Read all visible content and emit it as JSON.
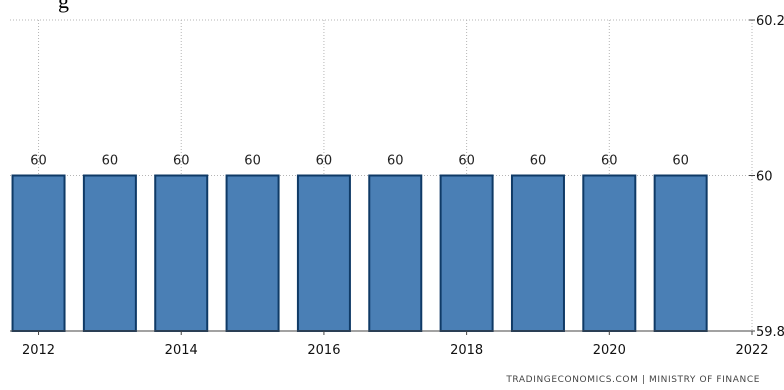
{
  "header": {
    "partial_title": "g"
  },
  "source_note": "TRADINGECONOMICS.COM | MINISTRY OF FINANCE",
  "colors": {
    "bar_fill": "#4a7fb5",
    "bar_stroke": "#0f3a66",
    "grid": "#b5b5b5",
    "axis": "#444444"
  },
  "chart_data": {
    "type": "bar",
    "categories": [
      "2012",
      "2013",
      "2014",
      "2015",
      "2016",
      "2017",
      "2018",
      "2019",
      "2020",
      "2021"
    ],
    "values": [
      60,
      60,
      60,
      60,
      60,
      60,
      60,
      60,
      60,
      60
    ],
    "data_labels": [
      "60",
      "60",
      "60",
      "60",
      "60",
      "60",
      "60",
      "60",
      "60",
      "60"
    ],
    "x_tick_labels": [
      "2012",
      "2014",
      "2016",
      "2018",
      "2020",
      "2022"
    ],
    "x_tick_years": [
      2012,
      2014,
      2016,
      2018,
      2020,
      2022
    ],
    "y_tick_labels": [
      "59.8",
      "60",
      "60.2"
    ],
    "y_ticks": [
      59.8,
      60,
      60.2
    ],
    "ylim": [
      59.8,
      60.2
    ],
    "xlim": [
      2011.6,
      2022
    ],
    "y_axis_side": "right",
    "grid": true
  }
}
